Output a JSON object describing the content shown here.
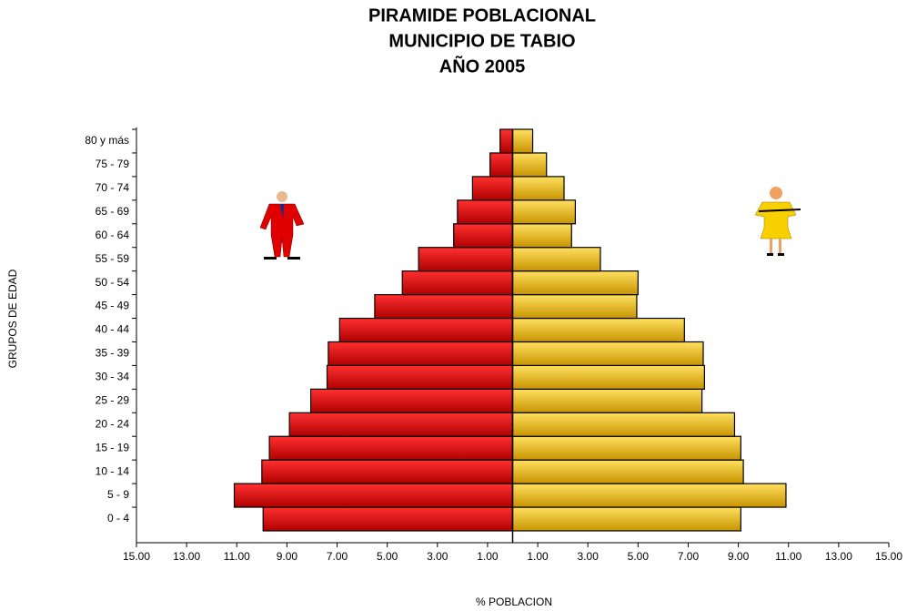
{
  "chart_data": {
    "type": "pyramid",
    "title": [
      "PIRAMIDE POBLACIONAL",
      "MUNICIPIO DE TABIO",
      "AÑO  2005"
    ],
    "x_label": "% POBLACION",
    "y_label": "GRUPOS DE EDAD",
    "categories": [
      "0 - 4",
      "5 - 9",
      "10 - 14",
      "15 - 19",
      "20 - 24",
      "25 - 29",
      "30 - 34",
      "35 - 39",
      "40 - 44",
      "45 - 49",
      "50 - 54",
      "55 - 59",
      "60 - 64",
      "65 - 69",
      "70 - 74",
      "75 - 79",
      "80 y más"
    ],
    "series": [
      {
        "color": "#ee0000",
        "values": [
          9.95,
          11.1,
          10.0,
          9.7,
          8.9,
          8.05,
          7.4,
          7.35,
          6.9,
          5.5,
          4.4,
          3.75,
          2.35,
          2.2,
          1.6,
          0.9,
          0.5
        ]
      },
      {
        "color": "#f2c200",
        "values": [
          9.1,
          10.9,
          9.2,
          9.1,
          8.85,
          7.55,
          7.65,
          7.6,
          6.85,
          4.95,
          5.0,
          3.5,
          2.35,
          2.5,
          2.05,
          1.35,
          0.8
        ]
      }
    ],
    "xlim": [
      -15,
      15
    ],
    "xticks": [
      {
        "value": -15,
        "label": "15.00"
      },
      {
        "value": -13,
        "label": "13.00"
      },
      {
        "value": -11,
        "label": "11.00"
      },
      {
        "value": -9,
        "label": "9.00"
      },
      {
        "value": -7,
        "label": "7.00"
      },
      {
        "value": -5,
        "label": "5.00"
      },
      {
        "value": -3,
        "label": "3.00"
      },
      {
        "value": -1,
        "label": "1.00"
      },
      {
        "value": 1,
        "label": "1.00"
      },
      {
        "value": 3,
        "label": "3.00"
      },
      {
        "value": 5,
        "label": "5.00"
      },
      {
        "value": 7,
        "label": "7.00"
      },
      {
        "value": 9,
        "label": "9.00"
      },
      {
        "value": 11,
        "label": "11.00"
      },
      {
        "value": 13,
        "label": "13.00"
      },
      {
        "value": 15,
        "label": "15.00"
      }
    ]
  }
}
